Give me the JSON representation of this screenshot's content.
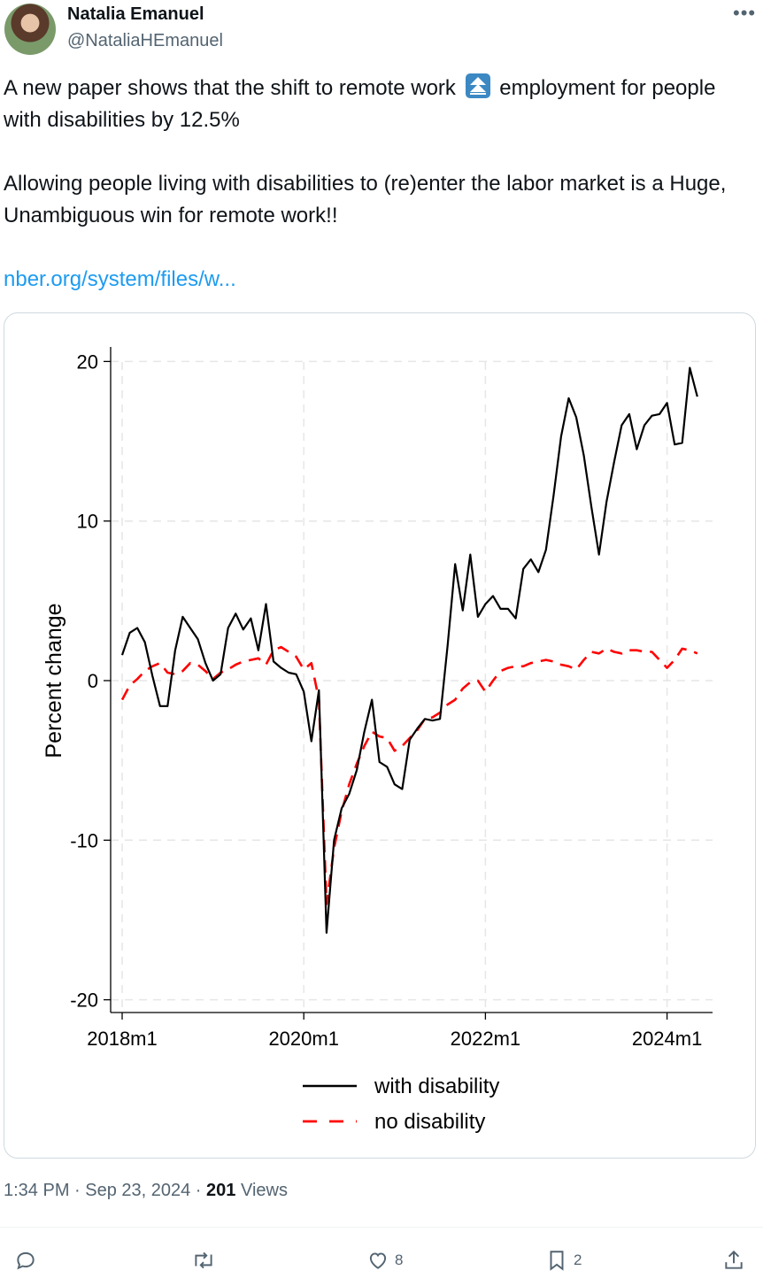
{
  "author": {
    "display_name": "Natalia Emanuel",
    "handle": "@NataliaHEmanuel"
  },
  "tweet": {
    "line1_part1": "A new paper shows that the shift to remote work",
    "line1_emoji": "up-arrow-emoji",
    "line1_part2": "employment for people with disabilities by 12.5%",
    "paragraph2": "Allowing people living with disabilities to (re)enter the labor market is a Huge, Unambiguous win for remote work!!",
    "link": "nber.org/system/files/w..."
  },
  "chart_data": {
    "type": "line",
    "ylabel": "Percent change",
    "ylim": [
      -20,
      20
    ],
    "yticks": [
      20,
      10,
      0,
      -10,
      -20
    ],
    "ytick_labels": [
      "20",
      "10",
      "0",
      "-10",
      "-20"
    ],
    "xlim": [
      0,
      79
    ],
    "xticks": [
      0,
      24,
      48,
      72
    ],
    "xtick_labels": [
      "2018m1",
      "2020m1",
      "2022m1",
      "2024m1"
    ],
    "grid": true,
    "legend_position": "bottom",
    "series": [
      {
        "name": "with disability",
        "color": "#000000",
        "style": "solid",
        "values": [
          1.6,
          3.0,
          3.3,
          2.4,
          0.3,
          -1.6,
          -1.6,
          1.9,
          4.0,
          3.3,
          2.6,
          1.1,
          0.0,
          0.4,
          3.3,
          4.2,
          3.2,
          3.9,
          1.9,
          4.8,
          1.2,
          0.8,
          0.5,
          0.4,
          -0.7,
          -3.8,
          -0.6,
          -15.8,
          -10.0,
          -8.0,
          -7.1,
          -5.6,
          -3.2,
          -1.2,
          -5.1,
          -5.4,
          -6.5,
          -6.8,
          -3.7,
          -3.0,
          -2.4,
          -2.5,
          -2.4,
          2.2,
          7.3,
          4.4,
          7.9,
          4.0,
          4.8,
          5.3,
          4.5,
          4.5,
          3.9,
          7.0,
          7.6,
          6.8,
          8.2,
          11.6,
          15.3,
          17.7,
          16.5,
          14.1,
          10.9,
          7.9,
          11.2,
          13.7,
          16.0,
          16.7,
          14.5,
          16.0,
          16.6,
          16.7,
          17.4,
          14.8,
          14.9,
          19.6,
          17.8
        ]
      },
      {
        "name": "no disability",
        "color": "#ff0000",
        "style": "dashed",
        "values": [
          -1.2,
          -0.3,
          0.1,
          0.6,
          0.9,
          1.1,
          0.5,
          0.4,
          0.6,
          1.1,
          1.0,
          0.6,
          0.1,
          0.5,
          0.7,
          1.0,
          1.2,
          1.3,
          1.4,
          1.0,
          1.9,
          2.1,
          1.8,
          1.5,
          0.7,
          1.1,
          -1.2,
          -14.0,
          -10.5,
          -8.2,
          -6.5,
          -5.2,
          -4.1,
          -3.2,
          -3.5,
          -3.6,
          -4.4,
          -4.1,
          -3.6,
          -3.1,
          -2.4,
          -2.3,
          -2.0,
          -1.5,
          -1.2,
          -0.5,
          -0.1,
          0.0,
          -0.7,
          0.0,
          0.6,
          0.8,
          0.9,
          0.9,
          1.1,
          1.2,
          1.3,
          1.2,
          1.0,
          0.9,
          0.7,
          1.3,
          1.8,
          1.7,
          2.0,
          1.8,
          1.7,
          1.9,
          1.9,
          1.8,
          1.8,
          1.3,
          0.8,
          1.3,
          2.0,
          1.9,
          1.7
        ]
      }
    ]
  },
  "meta": {
    "time": "1:34 PM · Sep 23, 2024 · ",
    "views_count": "201",
    "views_label": " Views"
  },
  "actions": {
    "reply_count": "",
    "retweet_count": "",
    "like_count": "8",
    "bookmark_count": "2"
  },
  "colors": {
    "text": "#0f1419",
    "secondary": "#536471",
    "link": "#1d9bf0",
    "border": "#cfd9de",
    "emoji_bg": "#3b88c3"
  }
}
